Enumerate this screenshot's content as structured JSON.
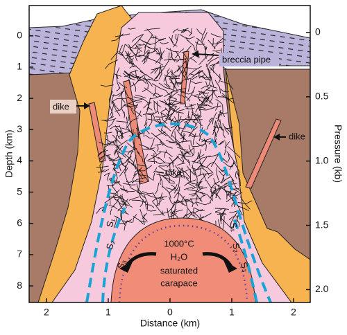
{
  "axes": {
    "left": {
      "title": "Depth (km)",
      "range": [
        -0.97,
        8.53
      ],
      "ticks": [
        0,
        1,
        2,
        3,
        4,
        5,
        6,
        7,
        8
      ]
    },
    "right": {
      "title": "Pressure (kb)",
      "range": [
        -0.21,
        2.1
      ],
      "ticks": [
        0,
        0.5,
        {
          "value": 1,
          "label": "1.0"
        },
        1.5,
        {
          "value": 2,
          "label": "2.0"
        }
      ]
    },
    "bottom": {
      "title": "Distance (km)",
      "range": [
        -2.28,
        2.27
      ],
      "ticks": [
        {
          "value": -2,
          "label": "2"
        },
        {
          "value": -1,
          "label": "1"
        },
        0,
        1,
        2
      ]
    }
  },
  "labels": {
    "breccia_pipe": "breccia pipe",
    "dike_left": "dike",
    "dike_right": "dike",
    "dike_center": "dike",
    "surfaces_left": [
      "S₁",
      "S₂",
      "S₃"
    ],
    "surfaces_right": [
      "S₁",
      "S₂",
      "S₃"
    ],
    "carapace": [
      "1000°C",
      "H₂O",
      "saturated",
      "carapace"
    ]
  }
}
